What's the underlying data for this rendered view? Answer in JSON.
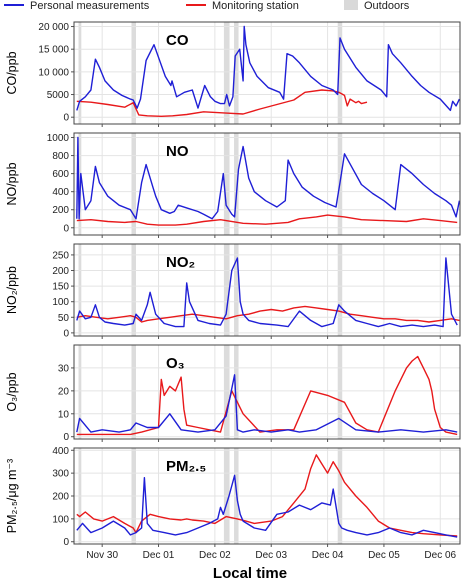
{
  "legend": [
    {
      "label": "Personal measurements",
      "color": "#1f1fd6",
      "kind": "line"
    },
    {
      "label": "Monitoring station",
      "color": "#e8191b",
      "kind": "line"
    },
    {
      "label": "Outdoors",
      "color": "#d9d9d9",
      "kind": "box"
    }
  ],
  "colors": {
    "personal": "#1f1fd6",
    "station": "#e8191b",
    "outdoors": "#dcdcdc",
    "grid": "#e4e4e4"
  },
  "xlabel": "Local time",
  "x_ticks": [
    {
      "t": 0.5,
      "label": "Nov 30"
    },
    {
      "t": 1.5,
      "label": "Dec 01"
    },
    {
      "t": 2.5,
      "label": "Dec 02"
    },
    {
      "t": 3.5,
      "label": "Dec 03"
    },
    {
      "t": 4.5,
      "label": "Dec 04"
    },
    {
      "t": 5.5,
      "label": "Dec 05"
    },
    {
      "t": 6.5,
      "label": "Dec 06"
    }
  ],
  "chart_data": [
    {
      "type": "line",
      "title": "CO",
      "ylabel": "CO/ppb",
      "ylim": [
        -1500,
        21000
      ],
      "yticks": [
        0,
        5000,
        10000,
        15000,
        20000
      ],
      "ytick_labels": [
        "0",
        "5000",
        "10 000",
        "15 000",
        "20 000"
      ],
      "xlim": [
        0,
        6.85
      ],
      "outdoor_periods": [
        [
          0.08,
          0.13
        ],
        [
          1.02,
          1.1
        ],
        [
          2.66,
          2.76
        ],
        [
          2.84,
          2.92
        ],
        [
          4.68,
          4.76
        ]
      ],
      "series": [
        {
          "name": "Personal measurements",
          "x": [
            0.05,
            0.1,
            0.2,
            0.3,
            0.38,
            0.45,
            0.55,
            0.7,
            0.85,
            1.0,
            1.05,
            1.12,
            1.18,
            1.28,
            1.42,
            1.62,
            1.72,
            1.74,
            1.82,
            1.96,
            2.1,
            2.2,
            2.32,
            2.42,
            2.5,
            2.6,
            2.67,
            2.71,
            2.76,
            2.82,
            2.86,
            2.94,
            3.0,
            3.02,
            3.05,
            3.12,
            3.25,
            3.45,
            3.65,
            3.72,
            3.78,
            3.88,
            4.0,
            4.2,
            4.4,
            4.6,
            4.68,
            4.72,
            4.8,
            5.0,
            5.2,
            5.45,
            5.55,
            5.58,
            5.65,
            5.8,
            6.0,
            6.15,
            6.3,
            6.5,
            6.68,
            6.72,
            6.78,
            6.84
          ],
          "y": [
            1500,
            3500,
            4500,
            6000,
            12800,
            11000,
            8000,
            6000,
            4800,
            4000,
            3800,
            2000,
            4000,
            12500,
            16000,
            9000,
            7000,
            8000,
            4500,
            5500,
            6000,
            2000,
            7000,
            4500,
            3500,
            3000,
            3000,
            5000,
            2500,
            4500,
            13500,
            15000,
            8000,
            20000,
            16000,
            12000,
            9000,
            6500,
            5500,
            4000,
            14000,
            13500,
            12000,
            9000,
            7000,
            6000,
            5000,
            17500,
            15000,
            11000,
            8000,
            6000,
            4500,
            16000,
            14000,
            12000,
            9000,
            7000,
            5500,
            4000,
            1500,
            3500,
            2500,
            4000
          ]
        },
        {
          "name": "Monitoring station",
          "x": [
            0.05,
            0.3,
            0.6,
            0.9,
            1.05,
            1.15,
            1.3,
            1.55,
            1.75,
            2.0,
            2.3,
            2.7,
            3.0,
            3.3,
            3.6,
            3.9,
            4.1,
            4.4,
            4.6,
            4.7,
            4.8,
            4.85,
            4.9,
            5.0,
            5.05,
            5.1,
            5.2
          ],
          "y": [
            3500,
            3300,
            2800,
            2200,
            3200,
            500,
            300,
            200,
            300,
            600,
            1200,
            900,
            700,
            1800,
            2800,
            3800,
            5500,
            6000,
            5800,
            5500,
            4800,
            2500,
            4000,
            3200,
            3500,
            3000,
            3300
          ]
        }
      ]
    },
    {
      "type": "line",
      "title": "NO",
      "ylabel": "NO/ppb",
      "ylim": [
        -80,
        1050
      ],
      "yticks": [
        0,
        200,
        400,
        600,
        800,
        1000
      ],
      "ytick_labels": [
        "0",
        "200",
        "400",
        "600",
        "800",
        "1000"
      ],
      "xlim": [
        0,
        6.85
      ],
      "outdoor_periods": [
        [
          0.08,
          0.13
        ],
        [
          1.02,
          1.1
        ],
        [
          2.66,
          2.76
        ],
        [
          2.84,
          2.92
        ],
        [
          4.68,
          4.76
        ]
      ],
      "series": [
        {
          "name": "Personal measurements",
          "x": [
            0.05,
            0.07,
            0.09,
            0.12,
            0.2,
            0.3,
            0.38,
            0.45,
            0.6,
            0.8,
            1.0,
            1.05,
            1.1,
            1.2,
            1.28,
            1.4,
            1.45,
            1.55,
            1.7,
            1.78,
            1.85,
            2.0,
            2.2,
            2.3,
            2.45,
            2.55,
            2.65,
            2.7,
            2.8,
            2.85,
            2.92,
            3.0,
            3.1,
            3.2,
            3.4,
            3.6,
            3.75,
            3.8,
            3.9,
            4.05,
            4.25,
            4.45,
            4.65,
            4.72,
            4.8,
            4.95,
            5.1,
            5.3,
            5.5,
            5.6,
            5.7,
            5.8,
            6.0,
            6.2,
            6.4,
            6.6,
            6.7,
            6.78,
            6.84
          ],
          "y": [
            100,
            1000,
            100,
            600,
            200,
            300,
            680,
            500,
            350,
            250,
            200,
            150,
            100,
            500,
            700,
            450,
            350,
            200,
            160,
            180,
            250,
            220,
            180,
            150,
            100,
            180,
            600,
            250,
            150,
            120,
            650,
            900,
            550,
            400,
            300,
            230,
            300,
            750,
            600,
            450,
            350,
            280,
            230,
            500,
            820,
            650,
            480,
            380,
            300,
            250,
            200,
            700,
            600,
            480,
            380,
            300,
            250,
            120,
            300
          ]
        },
        {
          "name": "Monitoring station",
          "x": [
            0.05,
            0.3,
            0.6,
            0.9,
            1.1,
            1.3,
            1.5,
            1.8,
            2.0,
            2.3,
            2.6,
            3.0,
            3.4,
            3.8,
            4.0,
            4.3,
            4.5,
            4.8,
            5.1,
            5.5,
            5.9,
            6.2,
            6.5,
            6.8
          ],
          "y": [
            80,
            90,
            70,
            60,
            70,
            40,
            30,
            30,
            40,
            70,
            90,
            50,
            40,
            60,
            100,
            120,
            140,
            120,
            90,
            80,
            70,
            100,
            80,
            60
          ]
        }
      ]
    },
    {
      "type": "line",
      "title": "NO₂",
      "ylabel": "NO₂/ppb",
      "ylim": [
        -10,
        285
      ],
      "yticks": [
        0,
        50,
        100,
        150,
        200,
        250
      ],
      "ytick_labels": [
        "0",
        "50",
        "100",
        "150",
        "200",
        "250"
      ],
      "xlim": [
        0,
        6.85
      ],
      "outdoor_periods": [
        [
          0.08,
          0.13
        ],
        [
          1.02,
          1.1
        ],
        [
          2.66,
          2.76
        ],
        [
          2.84,
          2.92
        ],
        [
          4.68,
          4.76
        ]
      ],
      "series": [
        {
          "name": "Personal measurements",
          "x": [
            0.05,
            0.1,
            0.2,
            0.3,
            0.38,
            0.45,
            0.55,
            0.7,
            0.9,
            1.05,
            1.1,
            1.2,
            1.3,
            1.35,
            1.45,
            1.6,
            1.8,
            1.95,
            2.0,
            2.05,
            2.2,
            2.4,
            2.6,
            2.7,
            2.8,
            2.9,
            2.95,
            3.0,
            3.1,
            3.3,
            3.6,
            3.8,
            4.0,
            4.2,
            4.4,
            4.6,
            4.7,
            4.8,
            5.0,
            5.2,
            5.4,
            5.6,
            5.8,
            6.0,
            6.2,
            6.4,
            6.55,
            6.6,
            6.7,
            6.8
          ],
          "y": [
            40,
            70,
            45,
            50,
            90,
            50,
            35,
            30,
            25,
            30,
            60,
            40,
            90,
            130,
            60,
            30,
            20,
            20,
            160,
            100,
            40,
            30,
            25,
            60,
            200,
            240,
            100,
            60,
            40,
            30,
            25,
            20,
            70,
            40,
            20,
            30,
            90,
            70,
            40,
            30,
            20,
            30,
            20,
            25,
            20,
            25,
            20,
            240,
            60,
            25
          ]
        },
        {
          "name": "Monitoring station",
          "x": [
            0.05,
            0.2,
            0.4,
            0.6,
            0.8,
            1.0,
            1.1,
            1.2,
            1.3,
            1.5,
            1.7,
            1.9,
            2.1,
            2.3,
            2.5,
            2.7,
            2.9,
            3.1,
            3.3,
            3.5,
            3.7,
            3.9,
            4.1,
            4.3,
            4.5,
            4.7,
            4.9,
            5.1,
            5.3,
            5.5,
            5.7,
            5.9,
            6.1,
            6.3,
            6.5,
            6.7,
            6.84
          ],
          "y": [
            50,
            55,
            50,
            45,
            50,
            55,
            50,
            35,
            40,
            45,
            50,
            55,
            60,
            55,
            50,
            45,
            55,
            60,
            70,
            75,
            70,
            80,
            85,
            80,
            75,
            70,
            60,
            55,
            50,
            45,
            45,
            40,
            40,
            35,
            40,
            45,
            40
          ]
        }
      ]
    },
    {
      "type": "line",
      "title": "O₃",
      "ylabel": "O₃/ppb",
      "ylim": [
        -1,
        40
      ],
      "yticks": [
        0,
        10,
        20,
        30
      ],
      "ytick_labels": [
        "0",
        "10",
        "20",
        "30"
      ],
      "xlim": [
        0,
        6.85
      ],
      "outdoor_periods": [
        [
          0.08,
          0.13
        ],
        [
          1.02,
          1.1
        ],
        [
          2.66,
          2.76
        ],
        [
          2.84,
          2.92
        ],
        [
          4.68,
          4.76
        ]
      ],
      "series": [
        {
          "name": "Personal measurements",
          "x": [
            0.05,
            0.1,
            0.3,
            0.5,
            0.8,
            1.0,
            1.1,
            1.3,
            1.5,
            1.7,
            1.9,
            2.2,
            2.5,
            2.7,
            2.85,
            2.9,
            3.0,
            3.2,
            3.5,
            3.8,
            4.0,
            4.3,
            4.7,
            5.0,
            5.4,
            5.8,
            6.2,
            6.6,
            6.8
          ],
          "y": [
            2,
            8,
            2,
            3,
            2,
            3,
            6,
            4,
            4,
            10,
            3,
            2,
            3,
            9,
            27,
            3,
            2,
            3,
            2,
            3,
            2,
            3,
            8,
            3,
            2,
            3,
            2,
            3,
            2
          ]
        },
        {
          "name": "Monitoring station",
          "x": [
            0.05,
            0.5,
            1.0,
            1.2,
            1.5,
            1.55,
            1.6,
            1.7,
            1.8,
            1.9,
            1.95,
            2.0,
            2.2,
            2.4,
            2.6,
            2.8,
            3.0,
            3.3,
            3.6,
            3.9,
            4.2,
            4.5,
            4.8,
            5.0,
            5.2,
            5.4,
            5.7,
            5.9,
            6.0,
            6.1,
            6.2,
            6.3,
            6.35,
            6.4,
            6.5,
            6.6,
            6.8
          ],
          "y": [
            1,
            1,
            1,
            2,
            4,
            25,
            18,
            22,
            20,
            26,
            12,
            5,
            4,
            3,
            2,
            20,
            10,
            2,
            3,
            3,
            20,
            18,
            15,
            6,
            3,
            2,
            20,
            30,
            33,
            35,
            30,
            25,
            20,
            12,
            4,
            2,
            1
          ]
        }
      ]
    },
    {
      "type": "line",
      "title": "PM₂.₅",
      "ylabel": "PM₂.₅/μg m⁻³",
      "ylim": [
        -10,
        410
      ],
      "yticks": [
        0,
        100,
        200,
        300,
        400
      ],
      "ytick_labels": [
        "0",
        "100",
        "200",
        "300",
        "400"
      ],
      "xlim": [
        0,
        6.85
      ],
      "outdoor_periods": [
        [
          0.08,
          0.13
        ],
        [
          1.02,
          1.1
        ],
        [
          2.66,
          2.76
        ],
        [
          2.84,
          2.92
        ],
        [
          4.68,
          4.76
        ]
      ],
      "series": [
        {
          "name": "Personal measurements",
          "x": [
            0.05,
            0.15,
            0.3,
            0.5,
            0.7,
            0.9,
            1.0,
            1.1,
            1.2,
            1.25,
            1.3,
            1.4,
            1.6,
            1.8,
            2.0,
            2.2,
            2.4,
            2.55,
            2.6,
            2.65,
            2.75,
            2.85,
            2.9,
            2.95,
            3.0,
            3.2,
            3.4,
            3.6,
            3.8,
            4.0,
            4.2,
            4.4,
            4.55,
            4.6,
            4.7,
            4.75,
            4.85,
            5.0,
            5.2,
            5.4,
            5.6,
            5.8,
            6.0,
            6.2,
            6.4,
            6.6,
            6.8
          ],
          "y": [
            50,
            80,
            40,
            60,
            90,
            60,
            30,
            40,
            60,
            280,
            80,
            50,
            40,
            30,
            40,
            60,
            80,
            100,
            150,
            120,
            200,
            290,
            180,
            120,
            90,
            60,
            50,
            120,
            130,
            160,
            140,
            170,
            160,
            230,
            80,
            60,
            50,
            40,
            30,
            40,
            60,
            40,
            30,
            50,
            40,
            30,
            20
          ]
        },
        {
          "name": "Monitoring station",
          "x": [
            0.05,
            0.1,
            0.2,
            0.35,
            0.5,
            0.7,
            0.9,
            1.05,
            1.1,
            1.2,
            1.35,
            1.5,
            1.7,
            1.9,
            2.0,
            2.1,
            2.3,
            2.5,
            2.7,
            2.9,
            3.05,
            3.2,
            3.5,
            3.7,
            3.9,
            4.1,
            4.2,
            4.3,
            4.4,
            4.5,
            4.6,
            4.7,
            4.8,
            5.0,
            5.2,
            5.4,
            5.6,
            5.8,
            6.0,
            6.2,
            6.5,
            6.8
          ],
          "y": [
            120,
            110,
            130,
            100,
            90,
            110,
            80,
            60,
            40,
            90,
            120,
            110,
            100,
            95,
            100,
            95,
            90,
            80,
            110,
            100,
            90,
            80,
            90,
            110,
            170,
            230,
            320,
            380,
            340,
            300,
            350,
            310,
            260,
            200,
            150,
            90,
            60,
            50,
            40,
            35,
            30,
            25
          ]
        }
      ]
    }
  ]
}
